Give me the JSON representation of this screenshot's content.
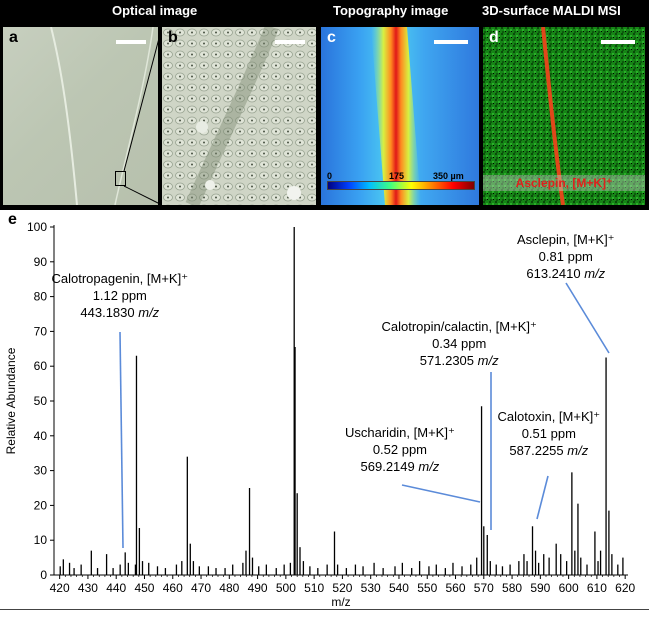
{
  "headers": {
    "optical": "Optical image",
    "topography": "Topography image",
    "maldi": "3D-surface MALDI MSI"
  },
  "panels": {
    "a": "a",
    "b": "b",
    "c": "c",
    "d": "d",
    "e": "e"
  },
  "colorbar": {
    "min": "0",
    "mid": "175",
    "max": "350 µm"
  },
  "maldi_label": "Asclepin, [M+K]⁺",
  "annotations": [
    {
      "id": "calotropagenin",
      "lines": [
        "Calotropagenin, [M+K]⁺",
        "1.12 ppm",
        "443.1830"
      ],
      "mz_unit": "m/z",
      "peak_mz": 443.18
    },
    {
      "id": "calotropin",
      "lines": [
        "Calotropin/calactin, [M+K]⁺",
        "0.34 ppm",
        "571.2305"
      ],
      "mz_unit": "m/z",
      "peak_mz": 571.23
    },
    {
      "id": "uscharidin",
      "lines": [
        "Uscharidin, [M+K]⁺",
        "0.52 ppm",
        "569.2149"
      ],
      "mz_unit": "m/z",
      "peak_mz": 569.21
    },
    {
      "id": "calotoxin",
      "lines": [
        "Calotoxin, [M+K]⁺",
        "0.51 ppm",
        "587.2255"
      ],
      "mz_unit": "m/z",
      "peak_mz": 587.23
    },
    {
      "id": "asclepin",
      "lines": [
        "Asclepin, [M+K]⁺",
        "0.81 ppm",
        "613.2410"
      ],
      "mz_unit": "m/z",
      "peak_mz": 613.24
    }
  ],
  "chart_data": {
    "type": "bar",
    "xlabel": "m/z",
    "ylabel": "Relative Abundance",
    "xlim": [
      418,
      621
    ],
    "ylim": [
      0,
      100
    ],
    "xticks": [
      420,
      430,
      440,
      450,
      460,
      470,
      480,
      490,
      500,
      510,
      520,
      530,
      540,
      550,
      560,
      570,
      580,
      590,
      600,
      610,
      620
    ],
    "yticks": [
      0,
      10,
      20,
      30,
      40,
      50,
      60,
      70,
      80,
      90,
      100
    ],
    "peaks": [
      {
        "mz": 420.2,
        "i": 2.5
      },
      {
        "mz": 421.3,
        "i": 4.5
      },
      {
        "mz": 423.5,
        "i": 3.5
      },
      {
        "mz": 425.1,
        "i": 2.0
      },
      {
        "mz": 427.6,
        "i": 3.0
      },
      {
        "mz": 431.2,
        "i": 7.0
      },
      {
        "mz": 433.4,
        "i": 2.0
      },
      {
        "mz": 436.6,
        "i": 6.0
      },
      {
        "mz": 438.9,
        "i": 2.0
      },
      {
        "mz": 441.4,
        "i": 3.0
      },
      {
        "mz": 443.18,
        "i": 6.5
      },
      {
        "mz": 444.3,
        "i": 3.5
      },
      {
        "mz": 446.8,
        "i": 3.0
      },
      {
        "mz": 447.17,
        "i": 63.0
      },
      {
        "mz": 448.2,
        "i": 13.5
      },
      {
        "mz": 449.3,
        "i": 4.0
      },
      {
        "mz": 451.5,
        "i": 3.5
      },
      {
        "mz": 454.6,
        "i": 2.5
      },
      {
        "mz": 457.4,
        "i": 2.0
      },
      {
        "mz": 461.3,
        "i": 3.0
      },
      {
        "mz": 463.2,
        "i": 4.0
      },
      {
        "mz": 465.15,
        "i": 34.0
      },
      {
        "mz": 466.2,
        "i": 9.0
      },
      {
        "mz": 467.3,
        "i": 4.0
      },
      {
        "mz": 469.4,
        "i": 2.5
      },
      {
        "mz": 472.6,
        "i": 2.5
      },
      {
        "mz": 475.3,
        "i": 2.0
      },
      {
        "mz": 478.5,
        "i": 2.0
      },
      {
        "mz": 481.2,
        "i": 3.0
      },
      {
        "mz": 484.8,
        "i": 3.5
      },
      {
        "mz": 485.9,
        "i": 7.0
      },
      {
        "mz": 487.15,
        "i": 25.0
      },
      {
        "mz": 488.2,
        "i": 5.0
      },
      {
        "mz": 490.4,
        "i": 2.5
      },
      {
        "mz": 493.1,
        "i": 3.0
      },
      {
        "mz": 496.6,
        "i": 2.0
      },
      {
        "mz": 499.4,
        "i": 3.0
      },
      {
        "mz": 501.6,
        "i": 3.5
      },
      {
        "mz": 502.95,
        "i": 100.0
      },
      {
        "mz": 503.25,
        "i": 65.5
      },
      {
        "mz": 504.0,
        "i": 23.5
      },
      {
        "mz": 505.0,
        "i": 8.0
      },
      {
        "mz": 506.2,
        "i": 4.0
      },
      {
        "mz": 508.5,
        "i": 2.5
      },
      {
        "mz": 511.3,
        "i": 2.0
      },
      {
        "mz": 514.6,
        "i": 3.0
      },
      {
        "mz": 517.2,
        "i": 12.5
      },
      {
        "mz": 518.3,
        "i": 3.0
      },
      {
        "mz": 521.4,
        "i": 2.0
      },
      {
        "mz": 524.6,
        "i": 3.0
      },
      {
        "mz": 527.3,
        "i": 2.5
      },
      {
        "mz": 531.2,
        "i": 3.5
      },
      {
        "mz": 534.4,
        "i": 2.0
      },
      {
        "mz": 538.6,
        "i": 2.5
      },
      {
        "mz": 541.2,
        "i": 3.5
      },
      {
        "mz": 544.5,
        "i": 2.0
      },
      {
        "mz": 547.3,
        "i": 4.0
      },
      {
        "mz": 550.6,
        "i": 2.5
      },
      {
        "mz": 553.2,
        "i": 3.0
      },
      {
        "mz": 556.4,
        "i": 2.0
      },
      {
        "mz": 559.1,
        "i": 3.5
      },
      {
        "mz": 562.3,
        "i": 2.5
      },
      {
        "mz": 565.4,
        "i": 3.0
      },
      {
        "mz": 567.5,
        "i": 5.0
      },
      {
        "mz": 569.21,
        "i": 48.5
      },
      {
        "mz": 570.0,
        "i": 14.0
      },
      {
        "mz": 571.23,
        "i": 11.5
      },
      {
        "mz": 572.3,
        "i": 4.0
      },
      {
        "mz": 574.4,
        "i": 3.0
      },
      {
        "mz": 576.6,
        "i": 2.5
      },
      {
        "mz": 579.3,
        "i": 3.0
      },
      {
        "mz": 582.4,
        "i": 4.0
      },
      {
        "mz": 584.2,
        "i": 6.0
      },
      {
        "mz": 585.3,
        "i": 4.0
      },
      {
        "mz": 587.23,
        "i": 14.0
      },
      {
        "mz": 588.3,
        "i": 7.0
      },
      {
        "mz": 589.4,
        "i": 3.5
      },
      {
        "mz": 591.2,
        "i": 6.0
      },
      {
        "mz": 593.1,
        "i": 5.0
      },
      {
        "mz": 595.6,
        "i": 9.0
      },
      {
        "mz": 597.2,
        "i": 6.0
      },
      {
        "mz": 599.3,
        "i": 4.0
      },
      {
        "mz": 601.15,
        "i": 29.5
      },
      {
        "mz": 602.2,
        "i": 7.0
      },
      {
        "mz": 603.3,
        "i": 20.5
      },
      {
        "mz": 604.3,
        "i": 5.0
      },
      {
        "mz": 606.5,
        "i": 3.0
      },
      {
        "mz": 609.3,
        "i": 12.5
      },
      {
        "mz": 610.4,
        "i": 4.0
      },
      {
        "mz": 611.3,
        "i": 7.0
      },
      {
        "mz": 613.24,
        "i": 62.5
      },
      {
        "mz": 614.25,
        "i": 18.5
      },
      {
        "mz": 615.3,
        "i": 6.0
      },
      {
        "mz": 617.4,
        "i": 3.0
      },
      {
        "mz": 619.2,
        "i": 5.0
      }
    ]
  },
  "colors": {
    "line": "#5b8bd9",
    "peak": "#000000"
  }
}
